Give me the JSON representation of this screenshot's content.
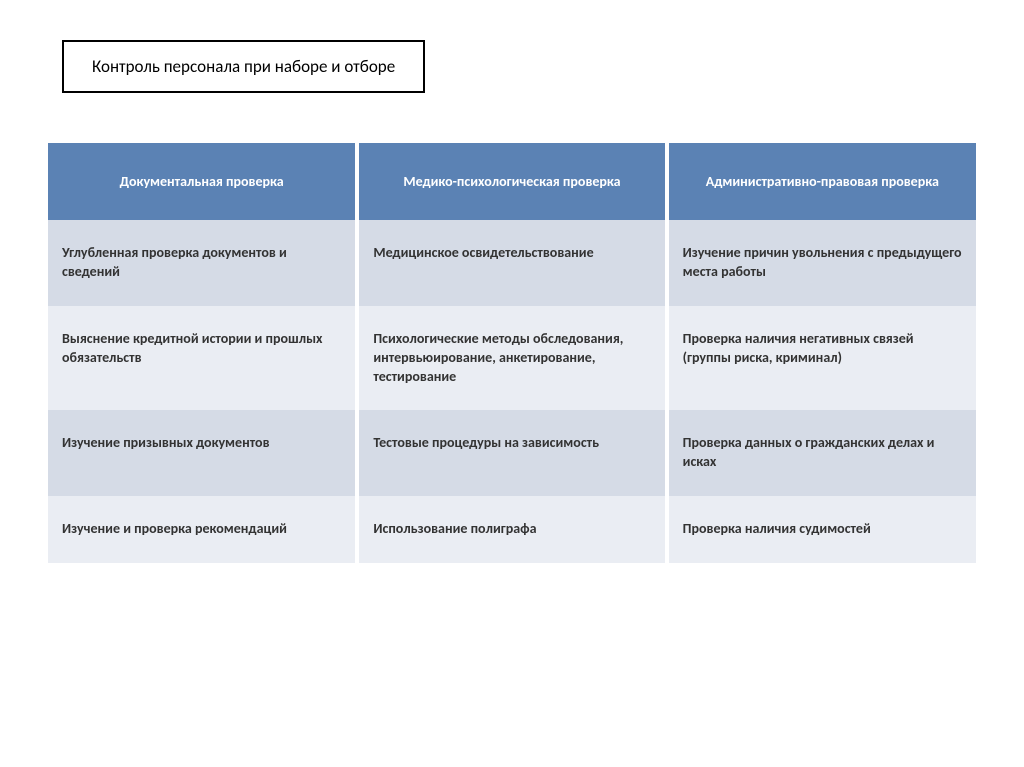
{
  "title": "Контроль персонала при наборе и отборе",
  "table": {
    "type": "table",
    "header_bg": "#5b82b4",
    "header_text_color": "#ffffff",
    "row_colors": [
      "#d5dbe6",
      "#eaedf3"
    ],
    "gap_color": "#ffffff",
    "columns": [
      "Документальная проверка",
      "Медико-психологическая проверка",
      "Административно-правовая проверка"
    ],
    "rows": [
      [
        "Углубленная проверка документов и сведений",
        "Медицинское освидетельствование",
        "Изучение причин увольнения с предыдущего места работы"
      ],
      [
        "Выяснение кредитной истории и прошлых обязательств",
        "Психологические методы обследования, интервьюирование, анкетирование, тестирование",
        "Проверка наличия негативных связей (группы риска, криминал)"
      ],
      [
        "Изучение призывных документов",
        "Тестовые процедуры на зависимость",
        "Проверка данных о гражданских делах и исках"
      ],
      [
        "Изучение и проверка рекомендаций",
        "Использование полиграфа",
        "Проверка наличия судимостей"
      ]
    ]
  }
}
